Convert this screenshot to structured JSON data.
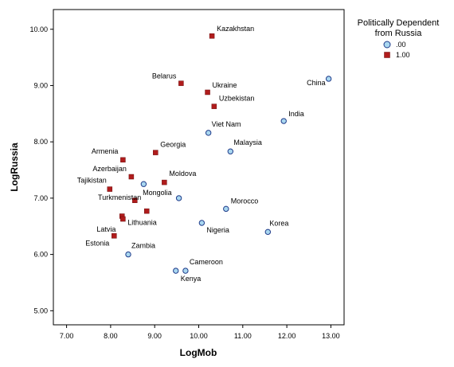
{
  "chart_data": {
    "type": "scatter",
    "xlabel": "LogMob",
    "ylabel": "LogRussia",
    "xlim": [
      6.7,
      13.3
    ],
    "ylim": [
      4.75,
      10.35
    ],
    "xticks": [
      "7.00",
      "8.00",
      "9.00",
      "10.00",
      "11.00",
      "12.00",
      "13.00"
    ],
    "yticks": [
      "5.00",
      "6.00",
      "7.00",
      "8.00",
      "9.00",
      "10.00"
    ],
    "legend": {
      "title_line1": "Politically Dependent",
      "title_line2": "from Russia",
      "position": "right",
      "items": [
        {
          "label": ".00",
          "marker": "circle",
          "color": "#a9d7f0",
          "edge": "#1f3b8a"
        },
        {
          "label": "1.00",
          "marker": "square",
          "color": "#b01c1c",
          "edge": "#6e0f0f"
        }
      ]
    },
    "series": [
      {
        "group": ".00",
        "points": [
          {
            "x": 12.95,
            "y": 9.12,
            "label": "China"
          },
          {
            "x": 11.93,
            "y": 8.37,
            "label": "India"
          },
          {
            "x": 10.22,
            "y": 8.16,
            "label": "Viet Nam"
          },
          {
            "x": 10.72,
            "y": 7.83,
            "label": "Malaysia"
          },
          {
            "x": 8.75,
            "y": 7.25,
            "label": ""
          },
          {
            "x": 9.55,
            "y": 7.0,
            "label": "Mongolia"
          },
          {
            "x": 10.62,
            "y": 6.81,
            "label": "Morocco"
          },
          {
            "x": 10.07,
            "y": 6.56,
            "label": "Nigeria"
          },
          {
            "x": 11.57,
            "y": 6.4,
            "label": "Korea"
          },
          {
            "x": 8.4,
            "y": 6.0,
            "label": "Zambia"
          },
          {
            "x": 9.7,
            "y": 5.71,
            "label": "Cameroon"
          },
          {
            "x": 9.48,
            "y": 5.71,
            "label": "Kenya"
          }
        ]
      },
      {
        "group": "1.00",
        "points": [
          {
            "x": 10.3,
            "y": 9.88,
            "label": "Kazakhstan"
          },
          {
            "x": 9.6,
            "y": 9.04,
            "label": "Belarus"
          },
          {
            "x": 10.2,
            "y": 8.88,
            "label": "Ukraine"
          },
          {
            "x": 10.35,
            "y": 8.63,
            "label": "Uzbekistan"
          },
          {
            "x": 9.02,
            "y": 7.81,
            "label": "Georgia"
          },
          {
            "x": 8.28,
            "y": 7.68,
            "label": "Armenia"
          },
          {
            "x": 8.47,
            "y": 7.38,
            "label": "Azerbaijan"
          },
          {
            "x": 9.22,
            "y": 7.28,
            "label": "Moldova"
          },
          {
            "x": 7.98,
            "y": 7.16,
            "label": "Tajikistan"
          },
          {
            "x": 8.55,
            "y": 6.96,
            "label": ""
          },
          {
            "x": 8.82,
            "y": 6.77,
            "label": "Turkmenistan"
          },
          {
            "x": 8.26,
            "y": 6.68,
            "label": "Lithuania"
          },
          {
            "x": 8.28,
            "y": 6.63,
            "label": "Latvia"
          },
          {
            "x": 8.08,
            "y": 6.33,
            "label": "Estonia"
          }
        ]
      }
    ]
  }
}
